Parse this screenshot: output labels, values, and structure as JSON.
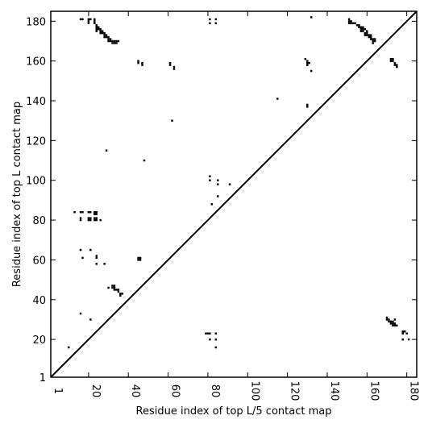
{
  "chart_data": {
    "type": "heatmap",
    "title": "",
    "xlabel": "Residue index of top L/5 contact map",
    "ylabel": "Residue index of top L contact map",
    "xlim": [
      1,
      185
    ],
    "ylim": [
      1,
      185
    ],
    "x_ticks": [
      1,
      20,
      40,
      60,
      80,
      100,
      120,
      140,
      160,
      180
    ],
    "y_ticks": [
      1,
      20,
      40,
      60,
      80,
      100,
      120,
      140,
      160,
      180
    ],
    "diagonal": true,
    "colors": {
      "contact": "#000000",
      "background": "#ffffff"
    },
    "upper_contacts": [
      [
        16,
        181
      ],
      [
        17,
        181
      ],
      [
        20,
        181
      ],
      [
        20,
        180
      ],
      [
        20,
        179
      ],
      [
        21,
        181
      ],
      [
        23,
        181
      ],
      [
        23,
        180
      ],
      [
        23,
        179
      ],
      [
        24,
        178
      ],
      [
        24,
        177
      ],
      [
        25,
        177
      ],
      [
        25,
        176
      ],
      [
        26,
        176
      ],
      [
        26,
        175
      ],
      [
        27,
        175
      ],
      [
        27,
        174
      ],
      [
        28,
        174
      ],
      [
        28,
        173
      ],
      [
        29,
        173
      ],
      [
        29,
        172
      ],
      [
        30,
        172
      ],
      [
        30,
        171
      ],
      [
        31,
        171
      ],
      [
        31,
        170
      ],
      [
        32,
        170
      ],
      [
        32,
        169
      ],
      [
        33,
        170
      ],
      [
        33,
        169
      ],
      [
        34,
        170
      ],
      [
        34,
        169
      ],
      [
        35,
        170
      ],
      [
        24,
        176
      ],
      [
        24,
        175
      ],
      [
        26,
        174
      ],
      [
        28,
        172
      ],
      [
        30,
        170
      ],
      [
        29,
        115
      ],
      [
        45,
        160
      ],
      [
        45,
        159
      ],
      [
        47,
        159
      ],
      [
        47,
        158
      ],
      [
        61,
        159
      ],
      [
        61,
        158
      ],
      [
        62,
        130
      ],
      [
        63,
        157
      ],
      [
        63,
        156
      ],
      [
        48,
        110
      ],
      [
        81,
        181
      ],
      [
        81,
        179
      ],
      [
        84,
        181
      ],
      [
        84,
        179
      ],
      [
        81,
        102
      ],
      [
        81,
        100
      ],
      [
        82,
        88
      ],
      [
        85,
        100
      ],
      [
        85,
        98
      ],
      [
        85,
        92
      ],
      [
        91,
        98
      ],
      [
        115,
        141
      ],
      [
        129,
        161
      ],
      [
        130,
        160
      ],
      [
        130,
        159
      ],
      [
        130,
        158
      ],
      [
        131,
        159
      ],
      [
        132,
        182
      ],
      [
        132,
        155
      ],
      [
        130,
        138
      ],
      [
        130,
        137
      ],
      [
        151,
        181
      ],
      [
        151,
        180
      ],
      [
        151,
        179
      ],
      [
        152,
        180
      ],
      [
        152,
        179
      ],
      [
        153,
        179
      ],
      [
        154,
        179
      ],
      [
        155,
        178
      ],
      [
        156,
        178
      ],
      [
        156,
        177
      ],
      [
        157,
        177
      ],
      [
        157,
        176
      ],
      [
        157,
        175
      ],
      [
        158,
        177
      ],
      [
        158,
        176
      ],
      [
        158,
        175
      ],
      [
        159,
        176
      ],
      [
        159,
        174
      ],
      [
        159,
        173
      ],
      [
        160,
        175
      ],
      [
        160,
        174
      ],
      [
        160,
        173
      ],
      [
        161,
        173
      ],
      [
        161,
        172
      ],
      [
        162,
        173
      ],
      [
        162,
        172
      ],
      [
        162,
        171
      ],
      [
        163,
        171
      ],
      [
        163,
        170
      ],
      [
        163,
        169
      ],
      [
        164,
        171
      ],
      [
        164,
        170
      ],
      [
        172,
        161
      ],
      [
        172,
        160
      ],
      [
        173,
        161
      ],
      [
        173,
        160
      ],
      [
        174,
        159
      ],
      [
        174,
        158
      ],
      [
        175,
        158
      ],
      [
        175,
        157
      ],
      [
        16,
        84
      ],
      [
        17,
        84
      ],
      [
        16,
        81
      ],
      [
        16,
        80
      ],
      [
        20,
        84
      ],
      [
        21,
        84
      ],
      [
        20,
        81
      ],
      [
        20,
        80
      ],
      [
        21,
        81
      ],
      [
        21,
        80
      ],
      [
        23,
        84
      ],
      [
        24,
        84
      ],
      [
        23,
        83
      ],
      [
        24,
        83
      ],
      [
        23,
        81
      ],
      [
        23,
        80
      ],
      [
        24,
        81
      ],
      [
        24,
        80
      ],
      [
        26,
        80
      ],
      [
        13,
        84
      ]
    ],
    "lower_contacts": [
      [
        10,
        16
      ],
      [
        16,
        33
      ],
      [
        21,
        30
      ],
      [
        16,
        65
      ],
      [
        17,
        61
      ],
      [
        21,
        65
      ],
      [
        24,
        62
      ],
      [
        24,
        61
      ],
      [
        24,
        58
      ],
      [
        28,
        58
      ],
      [
        30,
        46
      ],
      [
        32,
        47
      ],
      [
        32,
        46
      ],
      [
        33,
        47
      ],
      [
        33,
        46
      ],
      [
        33,
        45
      ],
      [
        34,
        45
      ],
      [
        35,
        45
      ],
      [
        35,
        44
      ],
      [
        36,
        43
      ],
      [
        36,
        42
      ],
      [
        37,
        43
      ],
      [
        45,
        61
      ],
      [
        45,
        60
      ],
      [
        46,
        61
      ],
      [
        46,
        60
      ],
      [
        79,
        23
      ],
      [
        80,
        23
      ],
      [
        81,
        23
      ],
      [
        81,
        20
      ],
      [
        84,
        23
      ],
      [
        84,
        20
      ],
      [
        84,
        16
      ],
      [
        170,
        31
      ],
      [
        170,
        30
      ],
      [
        171,
        30
      ],
      [
        171,
        29
      ],
      [
        172,
        29
      ],
      [
        172,
        28
      ],
      [
        173,
        29
      ],
      [
        173,
        28
      ],
      [
        173,
        27
      ],
      [
        174,
        30
      ],
      [
        174,
        28
      ],
      [
        174,
        27
      ],
      [
        175,
        27
      ],
      [
        178,
        24
      ],
      [
        178,
        23
      ],
      [
        179,
        24
      ],
      [
        180,
        23
      ],
      [
        178,
        20
      ],
      [
        181,
        20
      ]
    ]
  }
}
